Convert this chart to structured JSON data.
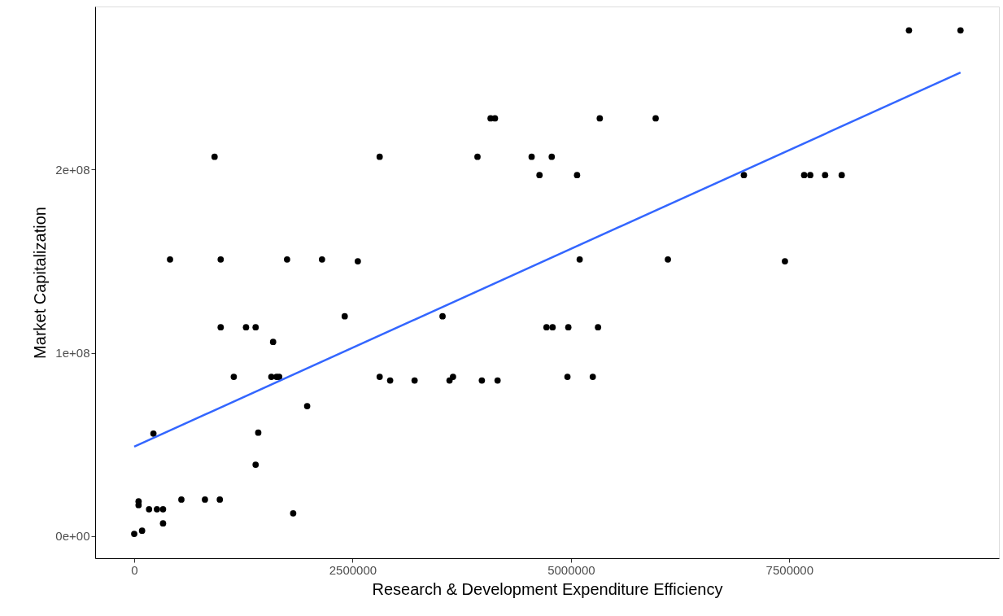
{
  "chart_data": {
    "type": "scatter",
    "xlabel": "Research & Development Expenditure Efficiency",
    "ylabel": "Market Capitalization",
    "xlim": [
      -447000,
      9900000
    ],
    "ylim": [
      -12000000,
      289000000
    ],
    "xticks": [
      0,
      2500000,
      5000000,
      7500000
    ],
    "yticks": [
      {
        "value": 0,
        "label": "0e+00"
      },
      {
        "value": 100000000,
        "label": "1e+08"
      },
      {
        "value": 200000000,
        "label": "2e+08"
      }
    ],
    "grid": false,
    "marker": "circle",
    "series": [
      {
        "color": "#000000",
        "x": [
          0,
          90000,
          50000,
          50000,
          170000,
          260000,
          330000,
          330000,
          540000,
          810000,
          980000,
          220000,
          410000,
          920000,
          990000,
          990000,
          1140000,
          1280000,
          1390000,
          1590000,
          1570000,
          1630000,
          1660000,
          1390000,
          1420000,
          1820000,
          1980000,
          1750000,
          2150000,
          2560000,
          2410000,
          2810000,
          4080000,
          4130000,
          5330000,
          5970000,
          3930000,
          4550000,
          4780000,
          4640000,
          5070000,
          5100000,
          6110000,
          3530000,
          4720000,
          4790000,
          4970000,
          5310000,
          2810000,
          2930000,
          3210000,
          3610000,
          3650000,
          3980000,
          4160000,
          4960000,
          5250000,
          8870000,
          9460000,
          6980000,
          7670000,
          7740000,
          7910000,
          8100000,
          7450000
        ],
        "values": [
          1300000,
          3000000,
          19000000,
          17000000,
          14700000,
          14700000,
          14700000,
          7000000,
          20000000,
          20000000,
          20000000,
          56000000,
          151000000,
          207000000,
          151000000,
          114000000,
          87000000,
          114000000,
          114000000,
          106000000,
          87000000,
          87000000,
          87000000,
          39000000,
          56500000,
          12500000,
          71000000,
          151000000,
          151000000,
          150000000,
          120000000,
          207000000,
          228000000,
          228000000,
          228000000,
          228000000,
          207000000,
          207000000,
          207000000,
          197000000,
          197000000,
          151000000,
          151000000,
          120000000,
          114000000,
          114000000,
          114000000,
          114000000,
          87000000,
          85000000,
          85000000,
          85000000,
          87000000,
          85000000,
          85000000,
          87000000,
          87000000,
          276000000,
          276000000,
          197000000,
          197000000,
          197000000,
          197000000,
          197000000,
          150000000
        ]
      },
      {
        "type": "line",
        "color": "#3366ff",
        "marker": "none",
        "x": [
          0,
          9460000
        ],
        "values": [
          48900000,
          253000000
        ]
      }
    ]
  }
}
